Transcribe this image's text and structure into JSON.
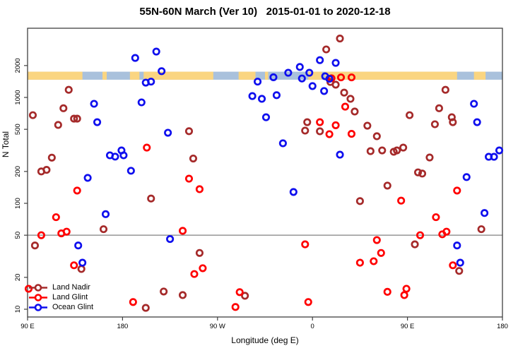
{
  "title": "55N-60N March (Ver 10)   2015-01-01 to 2020-12-18",
  "legend": {
    "items": [
      {
        "label": "Land Nadir",
        "color": "#A52A2A"
      },
      {
        "label": "Land Glint",
        "color": "#FF0000"
      },
      {
        "label": "Ocean Glint",
        "color": "#0F0FEE"
      }
    ]
  },
  "band": {
    "description": "land-ocean map strip for 55N-60N latitude band",
    "ocean_color": "#A9C1DC",
    "land_color": "#FAD581",
    "land_segments_lon": [
      [
        90,
        142
      ],
      [
        161,
        165
      ],
      [
        187,
        196
      ],
      [
        200,
        266
      ],
      [
        290,
        306
      ],
      [
        315,
        318
      ],
      [
        356,
        369
      ],
      [
        372,
        497
      ],
      [
        513,
        524
      ]
    ],
    "y_top_value": 1750,
    "y_bottom_value": 1470
  },
  "chart_data": {
    "type": "scatter",
    "title": "55N-60N March (Ver 10)   2015-01-01 to 2020-12-18",
    "xlabel": "Longitude (deg E)",
    "ylabel": "N Total",
    "x_range": [
      90,
      540
    ],
    "y_scale": "log",
    "y_range": [
      8.3,
      4500
    ],
    "x_ticks": [
      {
        "lon": 90,
        "label": "90 E"
      },
      {
        "lon": 180,
        "label": "180"
      },
      {
        "lon": 270,
        "label": "90 W"
      },
      {
        "lon": 360,
        "label": "0"
      },
      {
        "lon": 450,
        "label": "90 E"
      },
      {
        "lon": 540,
        "label": "180"
      }
    ],
    "y_ticks": [
      10,
      20,
      50,
      100,
      200,
      500,
      1000,
      2000
    ],
    "reference_line_y": 50,
    "grid": "off",
    "legend_position": "bottom-left",
    "series": [
      {
        "name": "Land Nadir",
        "color": "#A52A2A",
        "points": [
          [
            129,
            1180
          ],
          [
            124,
            790
          ],
          [
            95,
            680
          ],
          [
            134,
            630
          ],
          [
            137,
            630
          ],
          [
            119,
            550
          ],
          [
            113,
            270
          ],
          [
            103,
            200
          ],
          [
            108,
            207
          ],
          [
            243,
            480
          ],
          [
            247,
            265
          ],
          [
            207,
            111
          ],
          [
            162,
            57
          ],
          [
            97,
            40
          ],
          [
            141,
            24
          ],
          [
            219,
            14.7
          ],
          [
            237,
            13.6
          ],
          [
            202,
            10.3
          ],
          [
            296,
            13.4
          ],
          [
            253,
            34
          ],
          [
            386,
            3600
          ],
          [
            373,
            2840
          ],
          [
            377,
            1400
          ],
          [
            382,
            1320
          ],
          [
            390,
            1110
          ],
          [
            396,
            970
          ],
          [
            400,
            736
          ],
          [
            355,
            584
          ],
          [
            353,
            486
          ],
          [
            367,
            479
          ],
          [
            486,
            1180
          ],
          [
            480,
            790
          ],
          [
            452,
            680
          ],
          [
            492,
            650
          ],
          [
            493,
            584
          ],
          [
            476,
            558
          ],
          [
            412,
            541
          ],
          [
            421,
            430
          ],
          [
            415,
            311
          ],
          [
            426,
            316
          ],
          [
            437,
            307
          ],
          [
            440,
            316
          ],
          [
            446,
            336
          ],
          [
            471,
            271
          ],
          [
            460,
            196
          ],
          [
            464,
            191
          ],
          [
            431,
            147
          ],
          [
            405,
            105
          ],
          [
            457,
            41
          ],
          [
            520,
            57
          ],
          [
            499,
            23
          ]
        ]
      },
      {
        "name": "Land Glint",
        "color": "#FF0000",
        "points": [
          [
            203,
            336
          ],
          [
            137,
            132
          ],
          [
            117,
            74
          ],
          [
            122,
            52
          ],
          [
            127,
            54
          ],
          [
            103,
            50
          ],
          [
            237,
            55
          ],
          [
            134,
            26
          ],
          [
            91,
            15.6
          ],
          [
            190,
            11.7
          ],
          [
            243,
            171
          ],
          [
            253,
            136
          ],
          [
            353,
            41
          ],
          [
            256,
            24.4
          ],
          [
            248,
            21.5
          ],
          [
            291,
            14.5
          ],
          [
            287,
            10.5
          ],
          [
            356,
            11.7
          ],
          [
            378,
            1514
          ],
          [
            387,
            1546
          ],
          [
            397,
            1546
          ],
          [
            367,
            584
          ],
          [
            382,
            546
          ],
          [
            376,
            450
          ],
          [
            391,
            818
          ],
          [
            397,
            453
          ],
          [
            444,
            106
          ],
          [
            497,
            132
          ],
          [
            477,
            74
          ],
          [
            483,
            51
          ],
          [
            487,
            54
          ],
          [
            462,
            50
          ],
          [
            421,
            45
          ],
          [
            425,
            34
          ],
          [
            418,
            28.4
          ],
          [
            405,
            27.5
          ],
          [
            493,
            26
          ],
          [
            431,
            14.6
          ],
          [
            449,
            15.6
          ],
          [
            447,
            13.6
          ]
        ]
      },
      {
        "name": "Ocean Glint",
        "color": "#0F0FEE",
        "points": [
          [
            212,
            2710
          ],
          [
            192,
            2360
          ],
          [
            217,
            1770
          ],
          [
            202,
            1380
          ],
          [
            207,
            1410
          ],
          [
            153,
            871
          ],
          [
            156,
            584
          ],
          [
            198,
            898
          ],
          [
            168,
            284
          ],
          [
            173,
            276
          ],
          [
            179,
            316
          ],
          [
            181,
            284
          ],
          [
            188,
            203
          ],
          [
            223,
            464
          ],
          [
            147,
            174
          ],
          [
            138,
            40
          ],
          [
            164,
            79
          ],
          [
            225,
            46
          ],
          [
            142,
            27.5
          ],
          [
            308,
            1410
          ],
          [
            323,
            1550
          ],
          [
            337,
            1710
          ],
          [
            348,
            1940
          ],
          [
            357,
            1710
          ],
          [
            350,
            1510
          ],
          [
            360,
            1280
          ],
          [
            367,
            2250
          ],
          [
            382,
            2120
          ],
          [
            372,
            1585
          ],
          [
            376,
            1500
          ],
          [
            371,
            1150
          ],
          [
            303,
            1030
          ],
          [
            312,
            970
          ],
          [
            326,
            1050
          ],
          [
            316,
            650
          ],
          [
            332,
            369
          ],
          [
            386,
            288
          ],
          [
            342,
            128
          ],
          [
            513,
            871
          ],
          [
            516,
            584
          ],
          [
            527,
            275
          ],
          [
            532,
            275
          ],
          [
            537,
            316
          ],
          [
            506,
            177
          ],
          [
            523,
            81
          ],
          [
            497,
            40
          ],
          [
            500,
            27.5
          ]
        ]
      }
    ]
  }
}
